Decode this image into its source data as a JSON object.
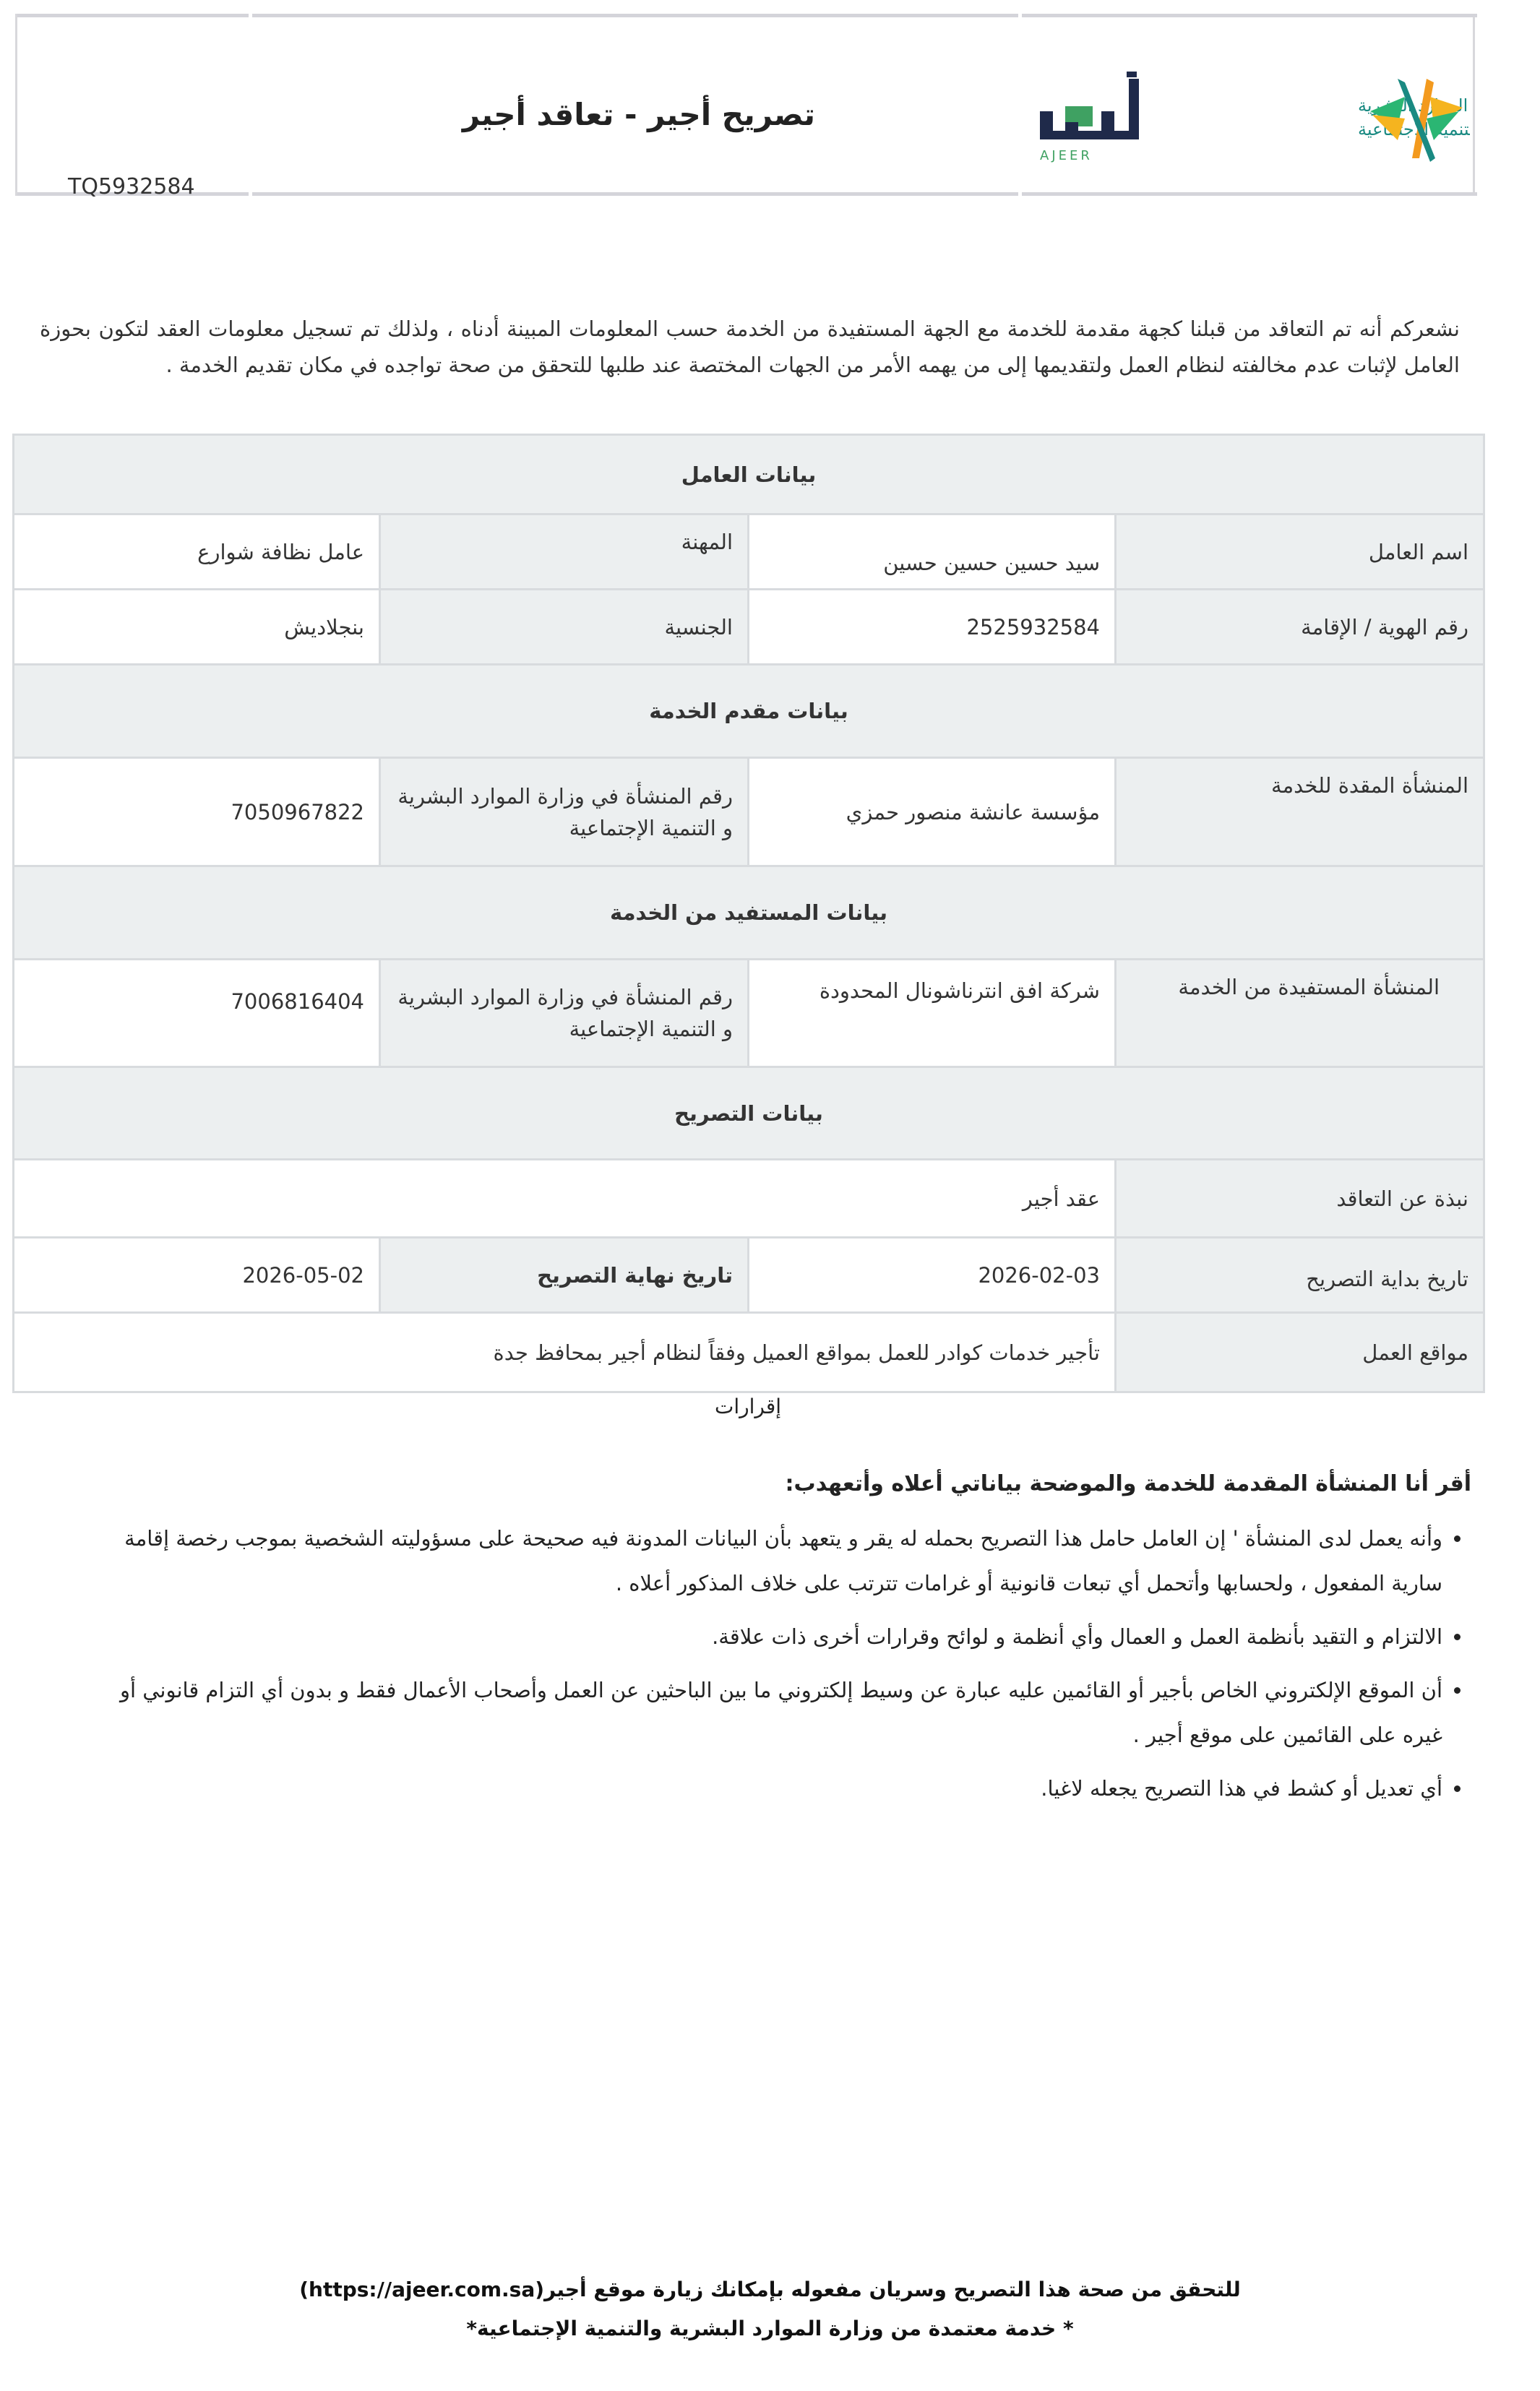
{
  "header": {
    "title": "تصريح أجير - تعاقد أجير",
    "reference_number": "TQ5932584",
    "logo_ajeer_text": "أجير",
    "logo_ajeer_latin": "AJEER",
    "logo_ministry_line1": "الموارد البشرية",
    "logo_ministry_line2": "والتنمية الاجتماعية"
  },
  "intro": "نشعركم أنه تم التعاقد من قبلنا كجهة  مقدمة  للخدمة مع الجهة المستفيدة من  الخدمة حسب المعلومات  المبينة  أدناه ، ولذلك  تم تسجيل  معلومات العقد لتكون  بحوزة العامل لإثبات عدم  مخالفته  لنظام العمل  ولتقديمها إلى من يهمه  الأمر من  الجهات المختصة  عند  طلبها  للتحقق من صحة تواجده في مكان تقديم الخدمة .",
  "worker": {
    "section_title": "بيانات العامل",
    "name_label": "اسم العامل",
    "name_value": "سيد حسين حسين حسين",
    "profession_label": "المهنة",
    "profession_value": "عامل نظافة شوارع",
    "id_label": "رقم الهوية / الإقامة",
    "id_value": "2525932584",
    "nationality_label": "الجنسية",
    "nationality_value": "بنجلاديش"
  },
  "provider": {
    "section_title": "بيانات مقدم الخدمة",
    "entity_label": "المنشأة المقدة للخدمة",
    "entity_value": "مؤسسة عانشة منصور حمزي",
    "mol_label": "رقم المنشأة في وزارة الموارد البشرية و التنمية الإجتماعية",
    "mol_value": "7050967822"
  },
  "beneficiary": {
    "section_title": "بيانات المستفيد من الخدمة",
    "entity_label": "المنشأة المستفيدة من الخدمة",
    "entity_value": "شركة افق انترناشونال المحدودة",
    "mol_label": "رقم المنشأة في وزارة الموارد البشرية و التنمية الإجتماعية",
    "mol_value": "7006816404"
  },
  "permit": {
    "section_title": "بيانات التصريح",
    "contract_label": "نبذة عن التعاقد",
    "contract_value": "عقد أجير",
    "start_label": "تاريخ بداية التصريح",
    "start_value": "2026-02-03",
    "end_label": "تاريخ نهاية التصريح",
    "end_value": "2026-05-02",
    "locations_label": "مواقع العمل",
    "locations_value": "تأجير خدمات كوادر للعمل بمواقع العميل وفقاً لنظام أجير بمحافظ جدة"
  },
  "declarations": {
    "title": "إقرارات",
    "heading": "أقر أنا المنشأة المقدمة للخدمة والموضحة بياناتي أعلاه وأتعهدب:",
    "items": [
      "وأنه يعمل لدى المنشأة ' إن العامل حامل هذا التصريح بحمله له يقر و يتعهد بأن البيانات المدونة فيه صحيحة على مسؤوليته الشخصية بموجب رخصة إقامة سارية المفعول ، ولحسابها وأتحمل أي تبعات قانونية أو غرامات تترتب على خلاف المذكور أعلاه .",
      "الالتزام و التقيد بأنظمة العمل و العمال وأي أنظمة و لوائح وقرارات أخرى ذات علاقة.",
      "أن الموقع الإلكتروني الخاص بأجير أو القائمين عليه عبارة عن وسيط إلكتروني ما بين الباحثين عن العمل وأصحاب الأعمال فقط و بدون أي التزام قانوني أو غيره على القائمين على موقع أجير .",
      "أي تعديل أو كشط في هذا التصريح يجعله لاغيا."
    ]
  },
  "footer": {
    "verify": "للتحقق من صحة هذا التصريح وسريان مفعوله بإمكانك زيارة موقع أجير(https://ajeer.com.sa)",
    "note": "* خدمة معتمدة من وزارة الموارد البشرية والتنمية الإجتماعية*"
  },
  "colors": {
    "label_bg": "#eceff0",
    "border": "#d8dbde",
    "ajeer_navy": "#1f2a4a",
    "ajeer_green": "#3fa162",
    "ministry_teal": "#1a8a82",
    "ministry_orange": "#f39a1e"
  }
}
